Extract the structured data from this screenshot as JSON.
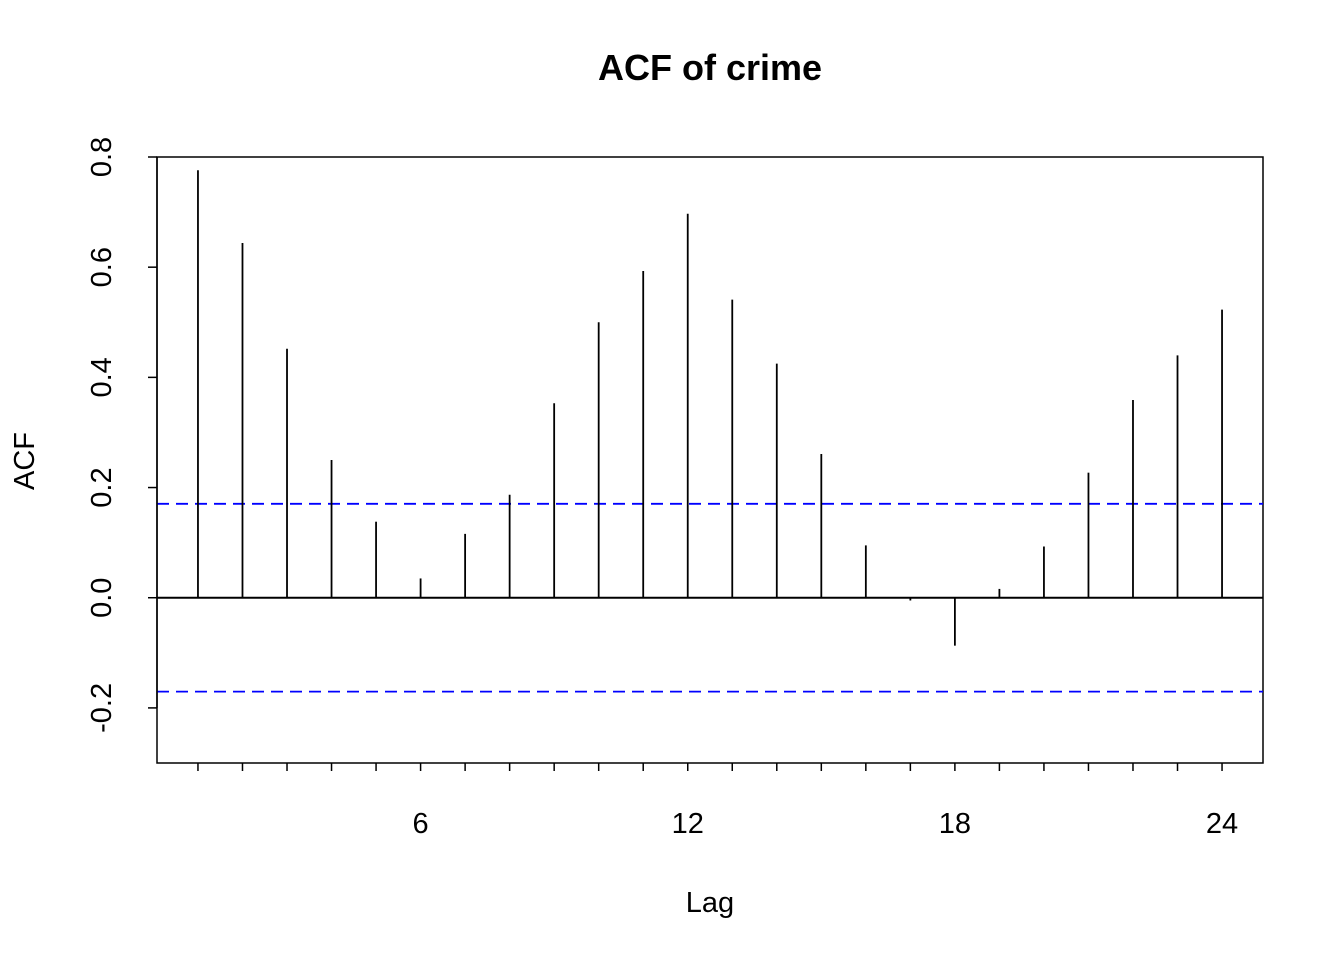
{
  "chart_data": {
    "type": "bar",
    "subtype": "acf-spike",
    "title": "ACF of crime",
    "xlabel": "Lag",
    "ylabel": "ACF",
    "x": [
      1,
      2,
      3,
      4,
      5,
      6,
      7,
      8,
      9,
      10,
      11,
      12,
      13,
      14,
      15,
      16,
      17,
      18,
      19,
      20,
      21,
      22,
      23,
      24
    ],
    "values": [
      0.776,
      0.644,
      0.452,
      0.25,
      0.138,
      0.035,
      0.116,
      0.187,
      0.353,
      0.5,
      0.593,
      0.697,
      0.541,
      0.425,
      0.261,
      0.095,
      -0.005,
      -0.087,
      0.016,
      0.093,
      0.227,
      0.359,
      0.44,
      0.523
    ],
    "confidence_bound": 0.1705,
    "xlim": [
      0.08,
      24.92
    ],
    "ylim": [
      -0.3,
      0.8
    ],
    "x_ticks": [
      1,
      2,
      3,
      4,
      5,
      6,
      7,
      8,
      9,
      10,
      11,
      12,
      13,
      14,
      15,
      16,
      17,
      18,
      19,
      20,
      21,
      22,
      23,
      24
    ],
    "x_tick_labels": [
      {
        "value": 6,
        "label": "6"
      },
      {
        "value": 12,
        "label": "12"
      },
      {
        "value": 18,
        "label": "18"
      },
      {
        "value": 24,
        "label": "24"
      }
    ],
    "y_ticks": [
      {
        "value": -0.2,
        "label": "-0.2"
      },
      {
        "value": 0.0,
        "label": "0.0"
      },
      {
        "value": 0.2,
        "label": "0.2"
      },
      {
        "value": 0.4,
        "label": "0.4"
      },
      {
        "value": 0.6,
        "label": "0.6"
      },
      {
        "value": 0.8,
        "label": "0.8"
      }
    ],
    "colors": {
      "spikes": "#000000",
      "zero_line": "#000000",
      "confidence_lines": "#0000FF"
    },
    "grid": false,
    "legend": "none"
  }
}
